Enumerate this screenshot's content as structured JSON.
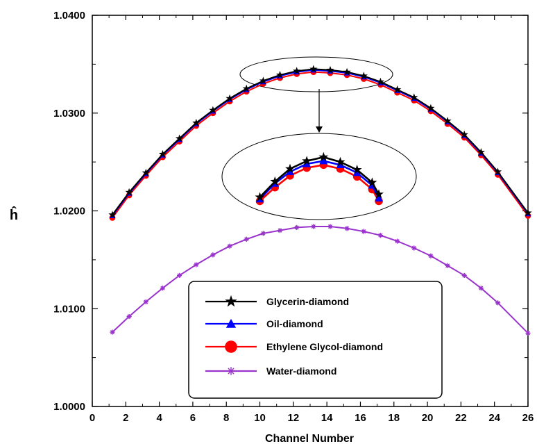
{
  "chart_data": {
    "type": "line",
    "title": "",
    "xlabel": "Channel Number",
    "ylabel": "ĥ",
    "xlim": [
      0,
      26
    ],
    "ylim": [
      1.0,
      1.04
    ],
    "x_ticks": [
      0,
      2,
      4,
      6,
      8,
      10,
      12,
      14,
      16,
      18,
      20,
      22,
      24,
      26
    ],
    "x_tick_labels": [
      "0",
      "2",
      "4",
      "6",
      "8",
      "10",
      "12",
      "14",
      "16",
      "18",
      "20",
      "22",
      "24",
      "26"
    ],
    "y_ticks": [
      1.0,
      1.01,
      1.02,
      1.03,
      1.04
    ],
    "y_tick_labels": [
      "1.0000",
      "1.0100",
      "1.0200",
      "1.0300",
      "1.0400"
    ],
    "grid": false,
    "legend_position": "bottom-center",
    "x": [
      1.2,
      2.2,
      3.2,
      4.2,
      5.2,
      6.2,
      7.2,
      8.2,
      9.2,
      10.2,
      11.2,
      12.2,
      13.2,
      14.2,
      15.2,
      16.2,
      17.2,
      18.2,
      19.2,
      20.2,
      21.2,
      22.2,
      23.2,
      24.2,
      26
    ],
    "series": [
      {
        "name": "Glycerin-diamond",
        "color": "#000000",
        "marker": "star",
        "values": [
          1.0196,
          1.0219,
          1.0239,
          1.0258,
          1.0274,
          1.029,
          1.0303,
          1.0315,
          1.0325,
          1.0333,
          1.0339,
          1.0343,
          1.0345,
          1.0344,
          1.0342,
          1.0338,
          1.0332,
          1.0324,
          1.0316,
          1.0305,
          1.0292,
          1.0278,
          1.026,
          1.024,
          1.0198
        ]
      },
      {
        "name": "Oil-diamond",
        "color": "#0000ff",
        "marker": "triangle",
        "values": [
          1.0195,
          1.0218,
          1.0238,
          1.0257,
          1.0273,
          1.0289,
          1.0302,
          1.0314,
          1.0324,
          1.0332,
          1.0338,
          1.0342,
          1.0344,
          1.0343,
          1.0341,
          1.0337,
          1.0331,
          1.0323,
          1.0315,
          1.0304,
          1.0291,
          1.0277,
          1.0259,
          1.0239,
          1.0197
        ]
      },
      {
        "name": "Ethylene Glycol-diamond",
        "color": "#ff0000",
        "marker": "circle",
        "values": [
          1.0193,
          1.0216,
          1.0236,
          1.0255,
          1.0271,
          1.0287,
          1.03,
          1.0312,
          1.0322,
          1.033,
          1.0336,
          1.034,
          1.0342,
          1.0341,
          1.0339,
          1.0335,
          1.0329,
          1.0321,
          1.0313,
          1.0302,
          1.0289,
          1.0275,
          1.0257,
          1.0237,
          1.0195
        ]
      },
      {
        "name": "Water-diamond",
        "color": "#9933cc",
        "marker": "asterisk",
        "values": [
          1.0076,
          1.0092,
          1.0107,
          1.0121,
          1.0134,
          1.0145,
          1.0155,
          1.0164,
          1.0171,
          1.0177,
          1.018,
          1.0183,
          1.0184,
          1.0184,
          1.0182,
          1.0179,
          1.0175,
          1.0169,
          1.0162,
          1.0154,
          1.0144,
          1.0134,
          1.0121,
          1.0106,
          1.0075
        ]
      }
    ],
    "inset": {
      "x": [
        10.0,
        10.9,
        11.8,
        12.8,
        13.8,
        14.8,
        15.8,
        16.7,
        17.1
      ],
      "series": [
        {
          "name": "Glycerin-diamond",
          "values": [
            1.0214,
            1.023,
            1.0243,
            1.0251,
            1.0255,
            1.025,
            1.0242,
            1.0229,
            1.0217
          ]
        },
        {
          "name": "Oil-diamond",
          "values": [
            1.0212,
            1.0228,
            1.024,
            1.0248,
            1.0251,
            1.0247,
            1.0239,
            1.0226,
            1.0213
          ]
        },
        {
          "name": "Ethylene Glycol-diamond",
          "values": [
            1.021,
            1.0224,
            1.0236,
            1.0244,
            1.0247,
            1.0243,
            1.0235,
            1.0222,
            1.021
          ]
        }
      ]
    }
  }
}
